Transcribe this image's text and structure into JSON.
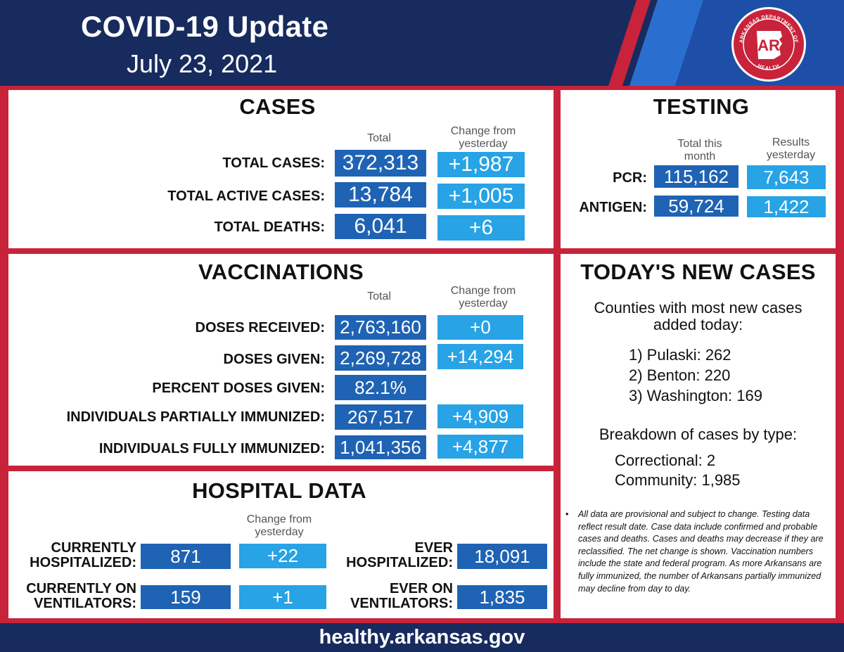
{
  "header": {
    "title": "COVID-19 Update",
    "date": "July 23, 2021",
    "seal": {
      "top_text": "ARKANSAS DEPARTMENT OF",
      "bottom_text": "HEALTH",
      "mark": "AR"
    },
    "colors": {
      "navy": "#172b5e",
      "red": "#c8233a"
    }
  },
  "cases": {
    "title": "CASES",
    "col_total": "Total",
    "col_change": "Change from yesterday",
    "rows": [
      {
        "label": "TOTAL CASES:",
        "total": "372,313",
        "change": "+1,987"
      },
      {
        "label": "TOTAL ACTIVE CASES:",
        "total": "13,784",
        "change": "+1,005"
      },
      {
        "label": "TOTAL DEATHS:",
        "total": "6,041",
        "change": "+6"
      }
    ]
  },
  "testing": {
    "title": "TESTING",
    "col_month": "Total this month",
    "col_yesterday": "Results yesterday",
    "rows": [
      {
        "label": "PCR:",
        "month": "115,162",
        "yesterday": "7,643"
      },
      {
        "label": "ANTIGEN:",
        "month": "59,724",
        "yesterday": "1,422"
      }
    ]
  },
  "vaccinations": {
    "title": "VACCINATIONS",
    "col_total": "Total",
    "col_change": "Change from yesterday",
    "rows": [
      {
        "label": "DOSES RECEIVED:",
        "total": "2,763,160",
        "change": "+0"
      },
      {
        "label": "DOSES GIVEN:",
        "total": "2,269,728",
        "change": "+14,294"
      },
      {
        "label": "PERCENT DOSES GIVEN:",
        "total": "82.1%",
        "change": ""
      },
      {
        "label": "INDIVIDUALS PARTIALLY IMMUNIZED:",
        "total": "267,517",
        "change": "+4,909"
      },
      {
        "label": "INDIVIDUALS FULLY IMMUNIZED:",
        "total": "1,041,356",
        "change": "+4,877"
      }
    ]
  },
  "hospital": {
    "title": "HOSPITAL DATA",
    "col_change": "Change from yesterday",
    "rows": [
      {
        "line1": "CURRENTLY",
        "line2": "HOSPITALIZED:",
        "value": "871",
        "change": "+22"
      },
      {
        "line1": "CURRENTLY ON",
        "line2": "VENTILATORS:",
        "value": "159",
        "change": "+1"
      }
    ],
    "ever": [
      {
        "line1": "EVER",
        "line2": "HOSPITALIZED:",
        "value": "18,091"
      },
      {
        "line1": "EVER ON",
        "line2": "VENTILATORS:",
        "value": "1,835"
      }
    ]
  },
  "new_cases": {
    "title": "TODAY'S NEW CASES",
    "counties_heading_1": "Counties with most new cases",
    "counties_heading_2": "added today:",
    "counties": [
      "1) Pulaski: 262",
      "2) Benton: 220",
      "3) Washington: 169"
    ],
    "breakdown_heading": "Breakdown of cases by type:",
    "breakdown": [
      "Correctional: 2",
      "Community: 1,985"
    ],
    "disclaimer": "All data are provisional and subject to change. Testing data reflect result date. Case data include confirmed and probable cases and deaths. Cases and deaths may decrease if they are reclassified. The net change is shown. Vaccination numbers include the state and federal program. As more Arkansans are fully immunized, the number of Arkansans partially immunized may decline from day to day."
  },
  "footer": {
    "url": "healthy.arkansas.gov"
  }
}
